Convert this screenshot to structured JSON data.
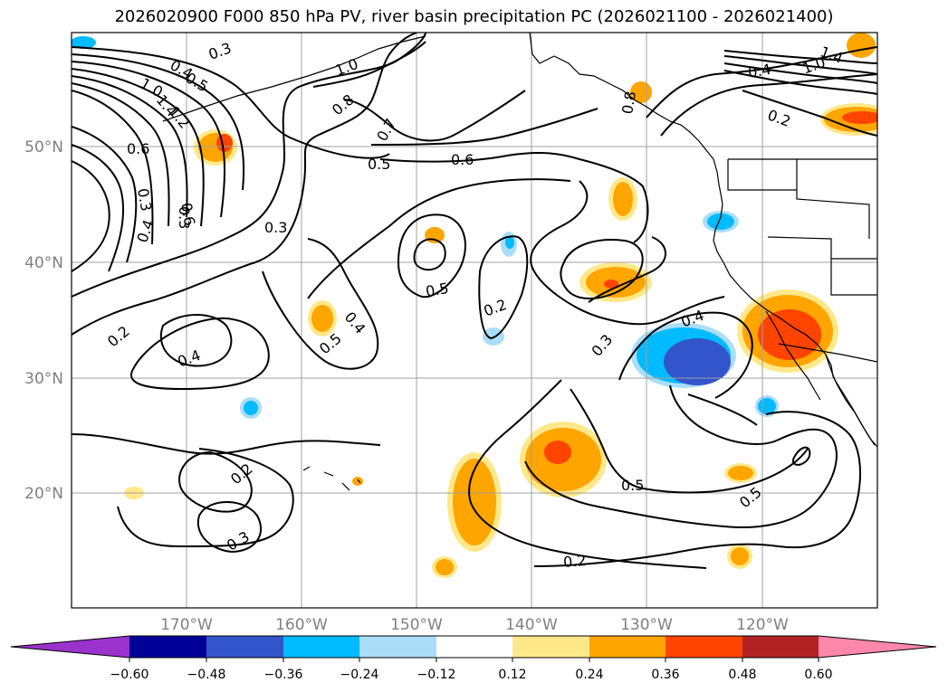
{
  "title": "2026020900 F000 850 hPa PV, river basin precipitation PC (2026021100 - 2026021400)",
  "colors": {
    "grid": "#a0a0a0",
    "coast": "#000000",
    "contour": "#000000",
    "bins": [
      "#9933cc",
      "#000099",
      "#3355cc",
      "#00bbff",
      "#aaddf8",
      "#ffffff",
      "#ffe88a",
      "#ffa500",
      "#ff4400",
      "#b22222",
      "#ff88aa"
    ]
  },
  "axes": {
    "lat_labels": [
      "50°N",
      "40°N",
      "30°N",
      "20°N"
    ],
    "lon_labels": [
      "170°W",
      "160°W",
      "150°W",
      "140°W",
      "130°W",
      "120°W"
    ]
  },
  "colorbar": {
    "ticks": [
      "−0.60",
      "−0.48",
      "−0.36",
      "−0.24",
      "−0.12",
      "0.12",
      "0.24",
      "0.36",
      "0.48",
      "0.60"
    ]
  },
  "contour_labels": [
    "0.3",
    "0.4",
    "0.5",
    "1.0",
    "1.2",
    "1.4",
    "0.8",
    "0.7",
    "0.6",
    "0.3",
    "0.4",
    "0.6",
    "0.3",
    "0.5",
    "0.6",
    "0.3",
    "0.5",
    "0.4",
    "0.5",
    "0.2",
    "0.2",
    "0.4",
    "0.4",
    "0.3",
    "0.2",
    "0.3",
    "0.5",
    "0.5",
    "0.2",
    "1.0",
    "1.4",
    "0.2",
    "0.4",
    "0.8",
    "1.0"
  ]
}
